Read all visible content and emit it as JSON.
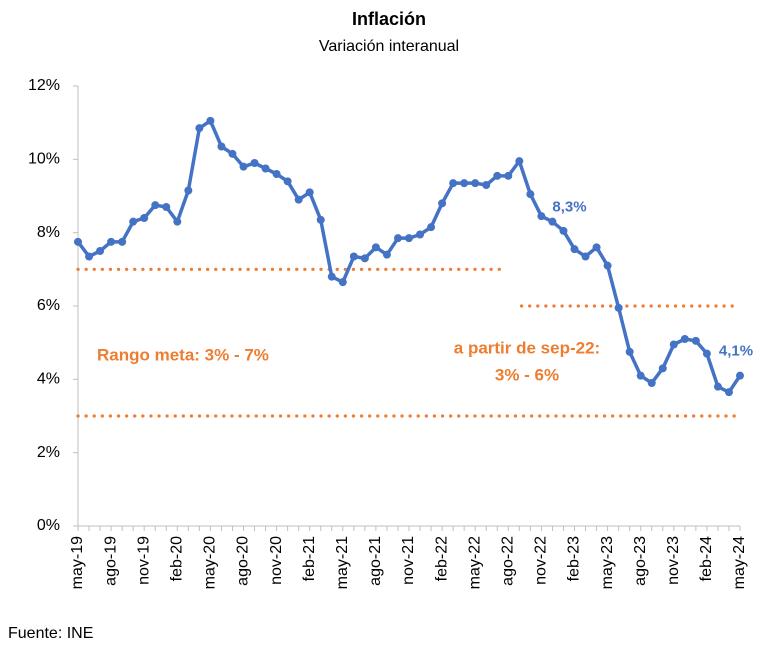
{
  "chart_data": {
    "type": "line",
    "title": "Inflación",
    "subtitle": "Variación interanual",
    "categories": [
      "may-19",
      null,
      null,
      "ago-19",
      null,
      null,
      "nov-19",
      null,
      null,
      "feb-20",
      null,
      null,
      "may-20",
      null,
      null,
      "ago-20",
      null,
      null,
      "nov-20",
      null,
      null,
      "feb-21",
      null,
      null,
      "may-21",
      null,
      null,
      "ago-21",
      null,
      null,
      "nov-21",
      null,
      null,
      "feb-22",
      null,
      null,
      "may-22",
      null,
      null,
      "ago-22",
      null,
      null,
      "nov-22",
      null,
      null,
      "feb-23",
      null,
      null,
      "may-23",
      null,
      null,
      "ago-23",
      null,
      null,
      "nov-23",
      null,
      null,
      "feb-24",
      null,
      null,
      "may-24"
    ],
    "series": [
      {
        "name": "Inflación",
        "color": "#4472C4",
        "values": [
          7.75,
          7.35,
          7.5,
          7.75,
          7.75,
          8.3,
          8.4,
          8.75,
          8.7,
          8.3,
          9.15,
          10.85,
          11.05,
          10.35,
          10.15,
          9.8,
          9.9,
          9.75,
          9.6,
          9.4,
          8.9,
          9.1,
          8.35,
          6.8,
          6.65,
          7.35,
          7.3,
          7.6,
          7.4,
          7.85,
          7.85,
          7.95,
          8.15,
          8.8,
          9.35,
          9.35,
          9.35,
          9.3,
          9.55,
          9.55,
          9.95,
          9.05,
          8.45,
          8.3,
          8.05,
          7.55,
          7.35,
          7.6,
          7.1,
          5.95,
          4.75,
          4.1,
          3.9,
          4.3,
          4.95,
          5.1,
          5.05,
          4.7,
          3.8,
          3.65,
          4.1
        ],
        "value_labels": [
          null,
          null,
          null,
          null,
          null,
          null,
          null,
          null,
          null,
          null,
          null,
          null,
          null,
          null,
          null,
          null,
          null,
          null,
          null,
          null,
          null,
          null,
          null,
          null,
          null,
          null,
          null,
          null,
          null,
          null,
          null,
          null,
          null,
          null,
          null,
          null,
          null,
          null,
          null,
          null,
          null,
          null,
          null,
          "8,3%",
          null,
          null,
          null,
          null,
          null,
          null,
          null,
          null,
          null,
          null,
          null,
          null,
          null,
          null,
          null,
          null,
          "4,1%"
        ]
      }
    ],
    "ylim": [
      0,
      12
    ],
    "yticks": [
      {
        "value": 0,
        "label": "0%"
      },
      {
        "value": 2,
        "label": "2%"
      },
      {
        "value": 4,
        "label": "4%"
      },
      {
        "value": 6,
        "label": "6%"
      },
      {
        "value": 8,
        "label": "8%"
      },
      {
        "value": 10,
        "label": "10%"
      },
      {
        "value": 12,
        "label": "12%"
      }
    ],
    "reference_lines": [
      {
        "value": 7,
        "from": "may-19",
        "to": "ago-22",
        "color": "#ED7D31"
      },
      {
        "value": 6,
        "from": "sep-22",
        "to": "may-24",
        "color": "#ED7D31"
      },
      {
        "value": 3,
        "from": "may-19",
        "to": "may-24",
        "color": "#ED7D31"
      }
    ],
    "annotations": [
      "Rango meta: 3% - 7%",
      "a partir de sep-22:",
      "3% - 6%"
    ],
    "source": "Fuente: INE"
  }
}
